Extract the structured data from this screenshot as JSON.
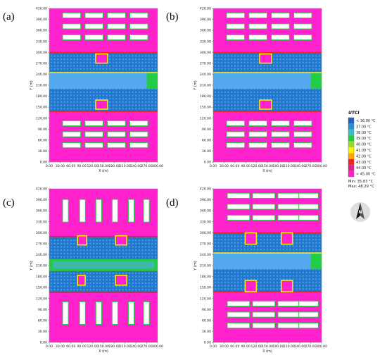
{
  "colors": {
    "hot": "#ff22cc",
    "hot_light": "#ff55dd",
    "cool": "#2277cc",
    "cool_light": "#55aaee",
    "green": "#22cc44",
    "yellow": "#ffee00",
    "red": "#ee2222",
    "building": "#ffffff",
    "frame": "#888888"
  },
  "panels": [
    {
      "label": "(a)",
      "xlabel": "X (m)",
      "ylabel": "Y (m)",
      "layout": "rows",
      "courtyard_mode": "blocks"
    },
    {
      "label": "(b)",
      "xlabel": "X (m)",
      "ylabel": "Y (m)",
      "layout": "rows",
      "courtyard_mode": "blocks"
    },
    {
      "label": "(c)",
      "xlabel": "X (m)",
      "ylabel": "Y (m)",
      "layout": "slabs",
      "courtyard_mode": "two-bands"
    },
    {
      "label": "(d)",
      "xlabel": "X (m)",
      "ylabel": "Y (m)",
      "layout": "wide-rows",
      "courtyard_mode": "notched"
    }
  ],
  "axes": {
    "x_ticks": [
      "0.00",
      "30.00",
      "60.00",
      "90.00",
      "120.00",
      "150.00",
      "180.00",
      "210.00",
      "240.00",
      "270.00",
      "300.00"
    ],
    "y_ticks": [
      "0.00",
      "30.00",
      "60.00",
      "90.00",
      "120.00",
      "150.00",
      "180.00",
      "210.00",
      "240.00",
      "270.00",
      "300.00",
      "330.00",
      "360.00",
      "390.00",
      "420.00"
    ],
    "x_range": [
      0,
      300
    ],
    "y_range": [
      0,
      420
    ]
  },
  "legend": {
    "title": "UTCI",
    "entries": [
      {
        "label": "< 36.00 °C",
        "color": "#1f5fbf"
      },
      {
        "label": "37.00 °C",
        "color": "#2f8fd0"
      },
      {
        "label": "38.00 °C",
        "color": "#36bfc8"
      },
      {
        "label": "39.00 °C",
        "color": "#22cc44"
      },
      {
        "label": "40.00 °C",
        "color": "#99dd22"
      },
      {
        "label": "41.00 °C",
        "color": "#ffee00"
      },
      {
        "label": "42.00 °C",
        "color": "#ffaa00"
      },
      {
        "label": "43.00 °C",
        "color": "#ee2222"
      },
      {
        "label": "44.00 °C",
        "color": "#dd2288"
      },
      {
        "label": "> 45.00 °C",
        "color": "#ff22cc"
      }
    ],
    "min_text": "Min: 35.83 °C",
    "max_text": "Max: 48.29 °C"
  },
  "compass": {
    "icon": "north-arrow-icon",
    "label": "N"
  }
}
